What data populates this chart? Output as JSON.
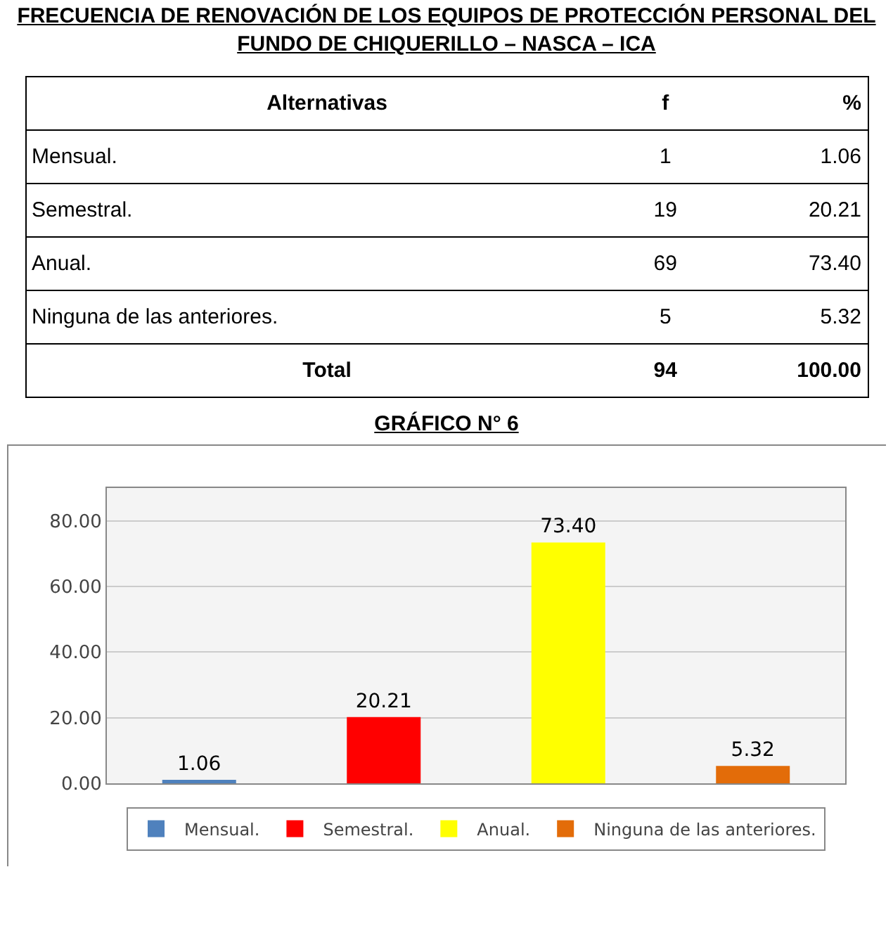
{
  "chart_data": [
    {
      "type": "other",
      "title": "FRECUENCIA DE RENOVACIÓN DE LOS EQUIPOS DE PROTECCIÓN PERSONAL DEL FUNDO DE CHIQUERILLO – NASCA – ICA",
      "categories": [
        "Alternativas",
        "f",
        "%"
      ],
      "annotations": [
        "Mensual.",
        "1",
        "1.06",
        "Semestral.",
        "19",
        "20.21",
        "Anual.",
        "69",
        "73.40",
        "Ninguna de las anteriores.",
        "5",
        "5.32",
        "Total",
        "94",
        "100.00"
      ]
    },
    {
      "type": "bar",
      "title": "GRÁFICO N° 6",
      "categories": [
        null,
        null,
        null,
        null
      ],
      "series": [
        {
          "name": "Mensual.",
          "color": "#4f81bd",
          "values": [
            1.06,
            null,
            null,
            null
          ],
          "value_labels": [
            "1.06",
            null,
            null,
            null
          ]
        },
        {
          "name": "Semestral.",
          "color": "#ff0000",
          "values": [
            null,
            20.21,
            null,
            null
          ],
          "value_labels": [
            null,
            "20.21",
            null,
            null
          ]
        },
        {
          "name": "Anual.",
          "color": "#ffff00",
          "values": [
            null,
            null,
            73.4,
            null
          ],
          "value_labels": [
            null,
            null,
            "73.40",
            null
          ]
        },
        {
          "name": "Ninguna de las anteriores.",
          "color": "#e36c09",
          "values": [
            null,
            null,
            null,
            5.32
          ],
          "value_labels": [
            null,
            null,
            null,
            "5.32"
          ]
        }
      ],
      "ylim": [
        0,
        90
      ],
      "yticks": [
        {
          "value": 0,
          "label": "0.00"
        },
        {
          "value": 20,
          "label": "20.00"
        },
        {
          "value": 40,
          "label": "40.00"
        },
        {
          "value": 60,
          "label": "60.00"
        },
        {
          "value": 80,
          "label": "80.00"
        }
      ],
      "grid": "y",
      "legend": "bottom"
    }
  ]
}
